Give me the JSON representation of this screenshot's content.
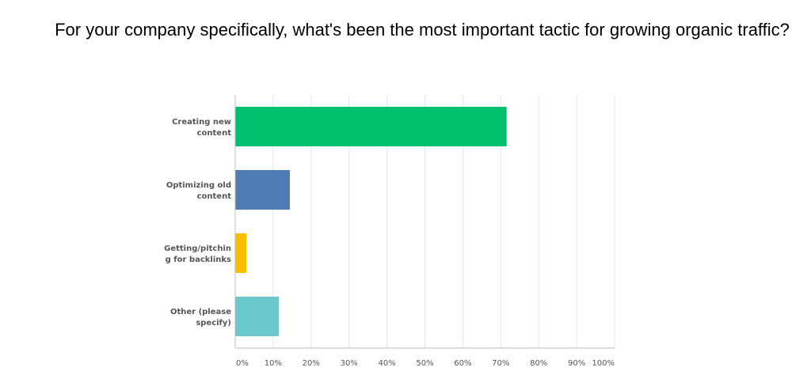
{
  "chart_data": {
    "type": "bar",
    "orientation": "horizontal",
    "title": "For your company specifically, what's been the most important tactic for growing organic traffic?",
    "categories": [
      [
        "Creating new",
        "content"
      ],
      [
        "Optimizing old",
        "content"
      ],
      [
        "Getting/pitchin",
        "g for backlinks"
      ],
      [
        "Other (please",
        "specify)"
      ]
    ],
    "values": [
      71.43,
      14.29,
      2.86,
      11.43
    ],
    "colors": [
      "#00bf6f",
      "#507cb6",
      "#f9be00",
      "#6bc8cd"
    ],
    "xlim": [
      0,
      100
    ],
    "xticks": [
      "0%",
      "10%",
      "20%",
      "30%",
      "40%",
      "50%",
      "60%",
      "70%",
      "80%",
      "90%",
      "100%"
    ],
    "grid": true,
    "xlabel": "",
    "ylabel": ""
  }
}
